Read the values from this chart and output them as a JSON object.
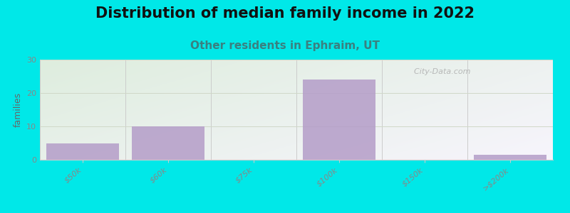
{
  "title": "Distribution of median family income in 2022",
  "subtitle": "Other residents in Ephraim, UT",
  "tick_labels": [
    "$50k",
    "$60k",
    "$75k",
    "$100k",
    "$150k",
    ">$200k"
  ],
  "bar_centers": [
    0.5,
    1.5,
    2.5,
    3.5,
    4.5,
    5.5
  ],
  "tick_positions": [
    0,
    1,
    2,
    3,
    4,
    5,
    6
  ],
  "values": [
    5,
    10,
    0,
    24,
    0,
    1.5
  ],
  "bar_color": "#b49dc8",
  "bar_width": 0.85,
  "ylabel": "families",
  "ylim": [
    0,
    30
  ],
  "yticks": [
    0,
    10,
    20,
    30
  ],
  "background_outer": "#00e8e8",
  "background_plot": "#e8f2e0",
  "title_fontsize": 15,
  "subtitle_fontsize": 11,
  "title_color": "#111111",
  "subtitle_color": "#3a8080",
  "watermark": "  City-Data.com",
  "grid_color": "#d0d8c8",
  "tick_label_color": "#888888",
  "ylabel_color": "#666666",
  "axis_color": "#cccccc"
}
